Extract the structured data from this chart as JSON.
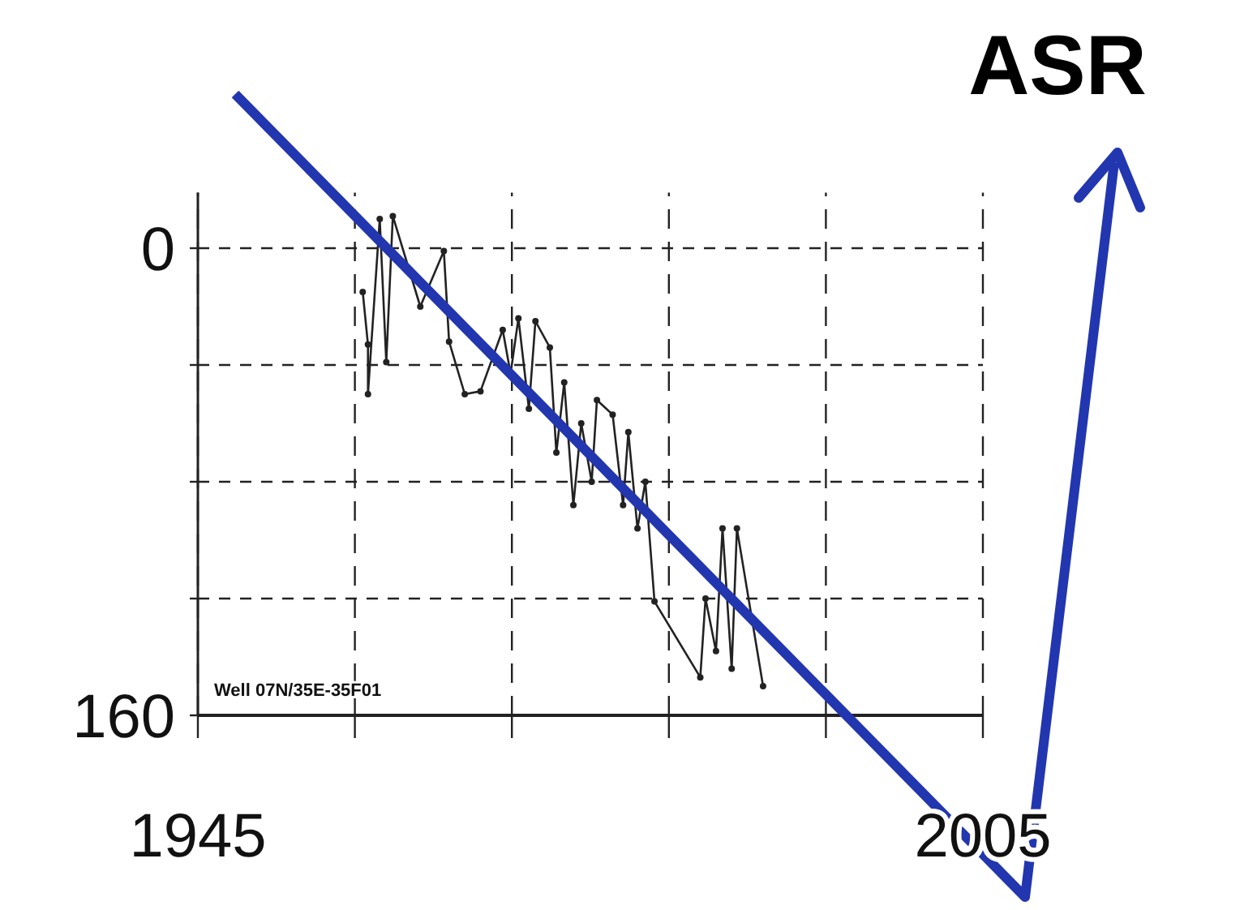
{
  "chart_data": {
    "type": "line",
    "x": [
      1957.6,
      1958.0,
      1958.0,
      1958.9,
      1959.4,
      1959.9,
      1962.0,
      1963.8,
      1964.2,
      1965.4,
      1966.6,
      1968.3,
      1968.9,
      1969.5,
      1970.3,
      1970.8,
      1971.9,
      1972.4,
      1973.0,
      1973.7,
      1974.3,
      1975.1,
      1975.5,
      1976.7,
      1977.5,
      1977.9,
      1978.6,
      1979.2,
      1979.9,
      1983.4,
      1983.8,
      1984.6,
      1985.1,
      1985.8,
      1986.2,
      1988.2
    ],
    "series": [
      {
        "color": "#222222",
        "values": [
          15,
          33,
          50,
          -10,
          39,
          -11,
          20,
          1,
          32,
          50,
          49,
          28,
          43,
          24,
          55,
          25,
          34,
          70,
          46,
          88,
          60,
          80,
          52,
          57,
          88,
          63,
          96,
          80,
          121,
          147,
          120,
          138,
          96,
          144,
          96,
          150
        ]
      }
    ],
    "xlim": [
      1945,
      2005
    ],
    "xticks": [
      1945,
      {
        "value": 1957,
        "label": null
      },
      {
        "value": 1969,
        "label": null
      },
      {
        "value": 1981,
        "label": null
      },
      {
        "value": 1993,
        "label": null
      },
      2005
    ],
    "ylim": [
      160,
      -19
    ],
    "yticks": [
      0,
      {
        "value": 40,
        "label": null
      },
      {
        "value": 80,
        "label": null
      },
      {
        "value": 120,
        "label": null
      },
      160
    ],
    "grid": true,
    "marker": "circle",
    "line_style": "solid",
    "annotations": [
      "Well 07N/35E-35F01",
      "ASR"
    ]
  }
}
